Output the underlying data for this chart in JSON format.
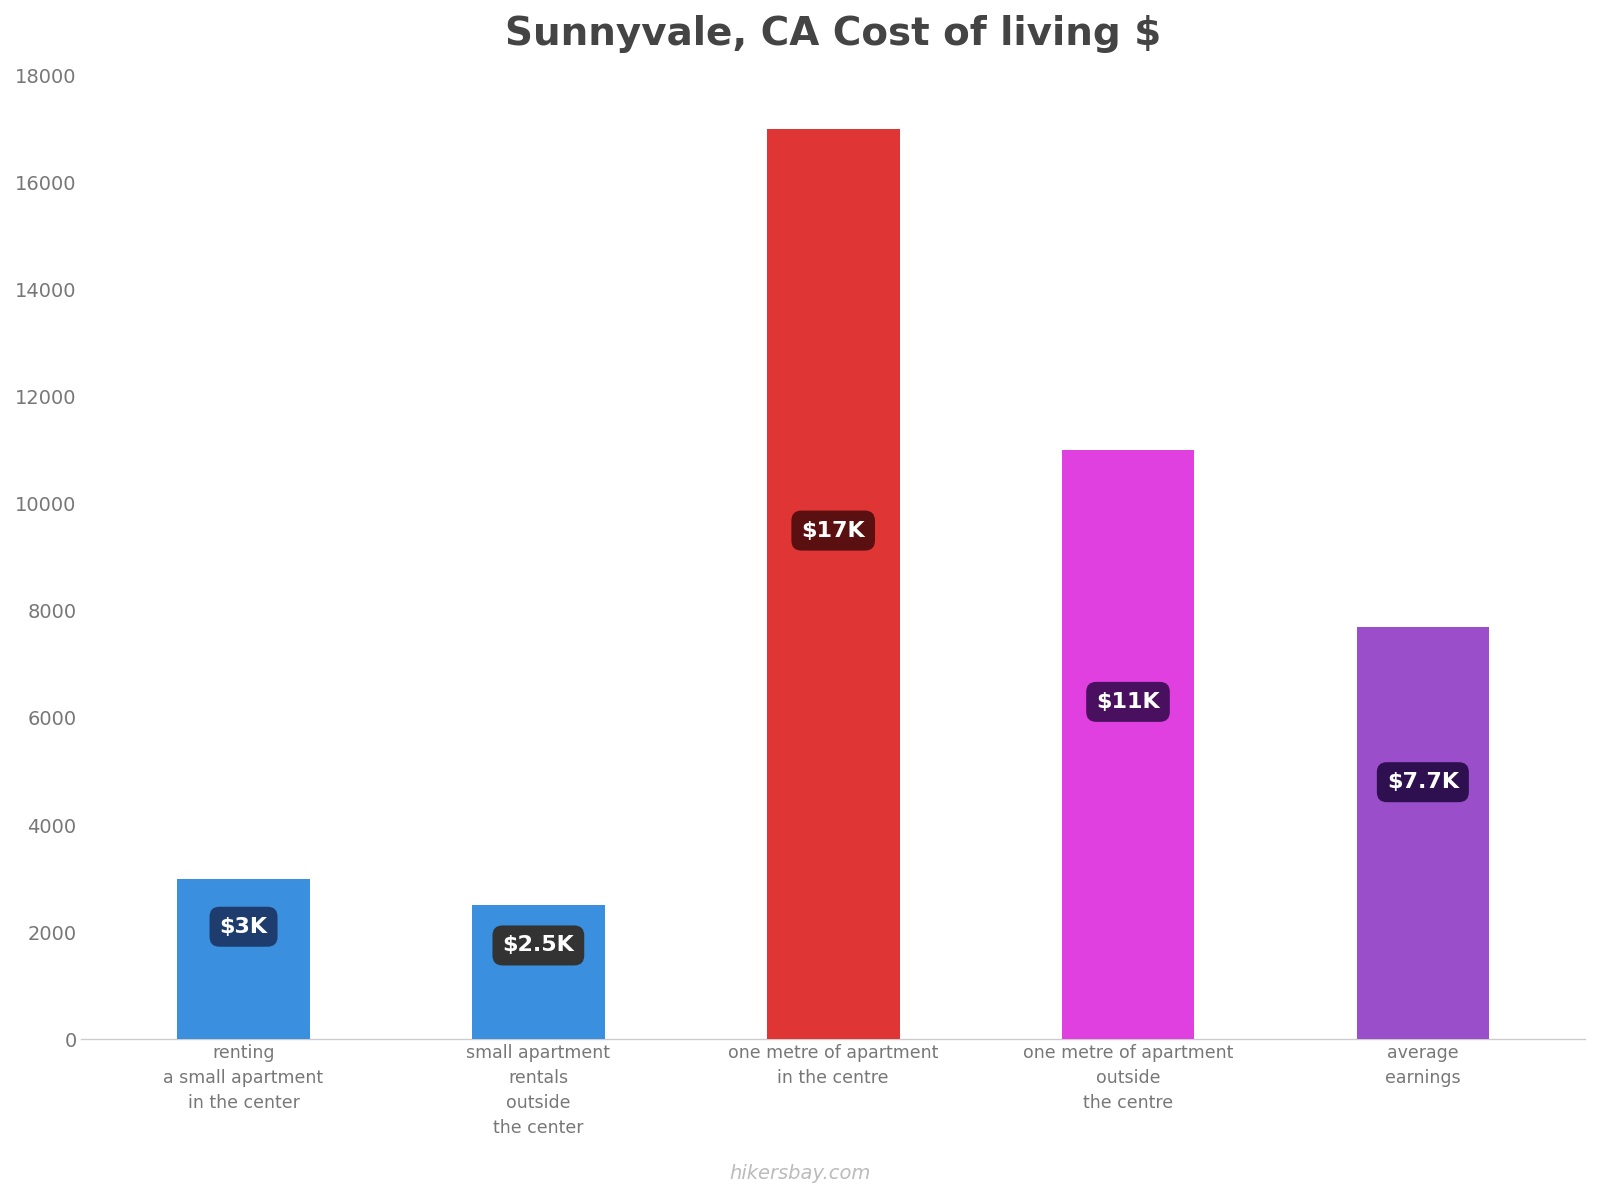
{
  "title": "Sunnyvale, CA Cost of living $",
  "title_fontsize": 28,
  "categories": [
    "renting\na small apartment\nin the center",
    "small apartment\nrentals\noutside\nthe center",
    "one metre of apartment\nin the centre",
    "one metre of apartment\noutside\nthe centre",
    "average\nearnings"
  ],
  "values": [
    3000,
    2500,
    17000,
    11000,
    7700
  ],
  "bar_colors": [
    "#3a8fdf",
    "#3a8fdf",
    "#e03535",
    "#e040e0",
    "#9b4ec9"
  ],
  "label_texts": [
    "$3K",
    "$2.5K",
    "$17K",
    "$11K",
    "$7.7K"
  ],
  "label_bg_colors": [
    "#1e3d6e",
    "#333333",
    "#5a1010",
    "#4a1060",
    "#2e1050"
  ],
  "label_y_abs": [
    2100,
    1750,
    9500,
    6300,
    4800
  ],
  "ylim": [
    0,
    18000
  ],
  "yticks": [
    0,
    2000,
    4000,
    6000,
    8000,
    10000,
    12000,
    14000,
    16000,
    18000
  ],
  "background_color": "#ffffff",
  "watermark": "hikersbay.com",
  "label_fontsize": 16,
  "bar_width": 0.45,
  "x_positions": [
    0,
    1,
    2,
    3,
    4
  ]
}
